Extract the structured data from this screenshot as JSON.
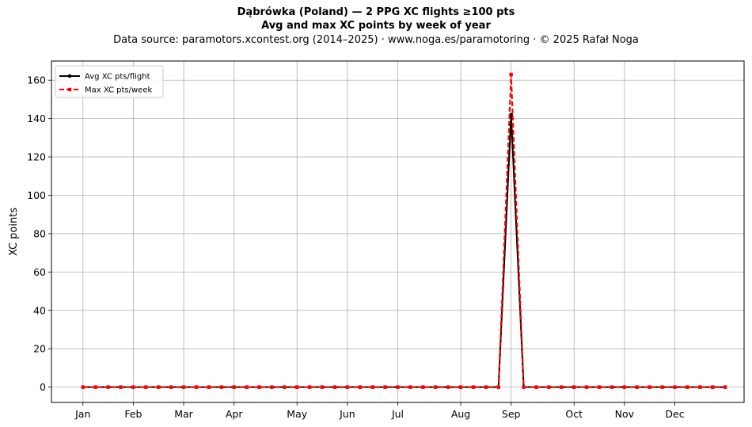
{
  "header": {
    "title_line1": "Dąbrówka (Poland)  —  2 PPG XC flights ≥100 pts",
    "title_line2": "Avg and max XC points by week of year",
    "title_line3": "Data source: paramotors.xcontest.org (2014–2025)  ·  www.noga.es/paramotoring  ·  © 2025 Rafał Noga"
  },
  "chart_data": {
    "type": "line",
    "ylabel": "XC points",
    "xlabel": "",
    "ylim": [
      -8,
      170
    ],
    "xlim": [
      -1.5,
      53.5
    ],
    "yticks": [
      0,
      20,
      40,
      60,
      80,
      100,
      120,
      140,
      160
    ],
    "xticks": [
      {
        "label": "Jan",
        "x": 1
      },
      {
        "label": "Feb",
        "x": 5
      },
      {
        "label": "Mar",
        "x": 9
      },
      {
        "label": "Apr",
        "x": 13
      },
      {
        "label": "May",
        "x": 18
      },
      {
        "label": "Jun",
        "x": 22
      },
      {
        "label": "Jul",
        "x": 26
      },
      {
        "label": "Aug",
        "x": 31
      },
      {
        "label": "Sep",
        "x": 35
      },
      {
        "label": "Oct",
        "x": 40
      },
      {
        "label": "Nov",
        "x": 44
      },
      {
        "label": "Dec",
        "x": 48
      }
    ],
    "grid": true,
    "legend_position": "top-left",
    "x": [
      1,
      2,
      3,
      4,
      5,
      6,
      7,
      8,
      9,
      10,
      11,
      12,
      13,
      14,
      15,
      16,
      17,
      18,
      19,
      20,
      21,
      22,
      23,
      24,
      25,
      26,
      27,
      28,
      29,
      30,
      31,
      32,
      33,
      34,
      35,
      36,
      37,
      38,
      39,
      40,
      41,
      42,
      43,
      44,
      45,
      46,
      47,
      48,
      49,
      50,
      51,
      52
    ],
    "series": [
      {
        "name": "Avg XC pts/flight",
        "color": "#000000",
        "style": "solid",
        "marker": "circle",
        "values": [
          0,
          0,
          0,
          0,
          0,
          0,
          0,
          0,
          0,
          0,
          0,
          0,
          0,
          0,
          0,
          0,
          0,
          0,
          0,
          0,
          0,
          0,
          0,
          0,
          0,
          0,
          0,
          0,
          0,
          0,
          0,
          0,
          0,
          0,
          142,
          0,
          0,
          0,
          0,
          0,
          0,
          0,
          0,
          0,
          0,
          0,
          0,
          0,
          0,
          0,
          0,
          0
        ]
      },
      {
        "name": "Max XC pts/week",
        "color": "#ff0000",
        "style": "dashed",
        "marker": "square",
        "values": [
          0,
          0,
          0,
          0,
          0,
          0,
          0,
          0,
          0,
          0,
          0,
          0,
          0,
          0,
          0,
          0,
          0,
          0,
          0,
          0,
          0,
          0,
          0,
          0,
          0,
          0,
          0,
          0,
          0,
          0,
          0,
          0,
          0,
          0,
          163,
          0,
          0,
          0,
          0,
          0,
          0,
          0,
          0,
          0,
          0,
          0,
          0,
          0,
          0,
          0,
          0,
          0
        ]
      }
    ]
  }
}
